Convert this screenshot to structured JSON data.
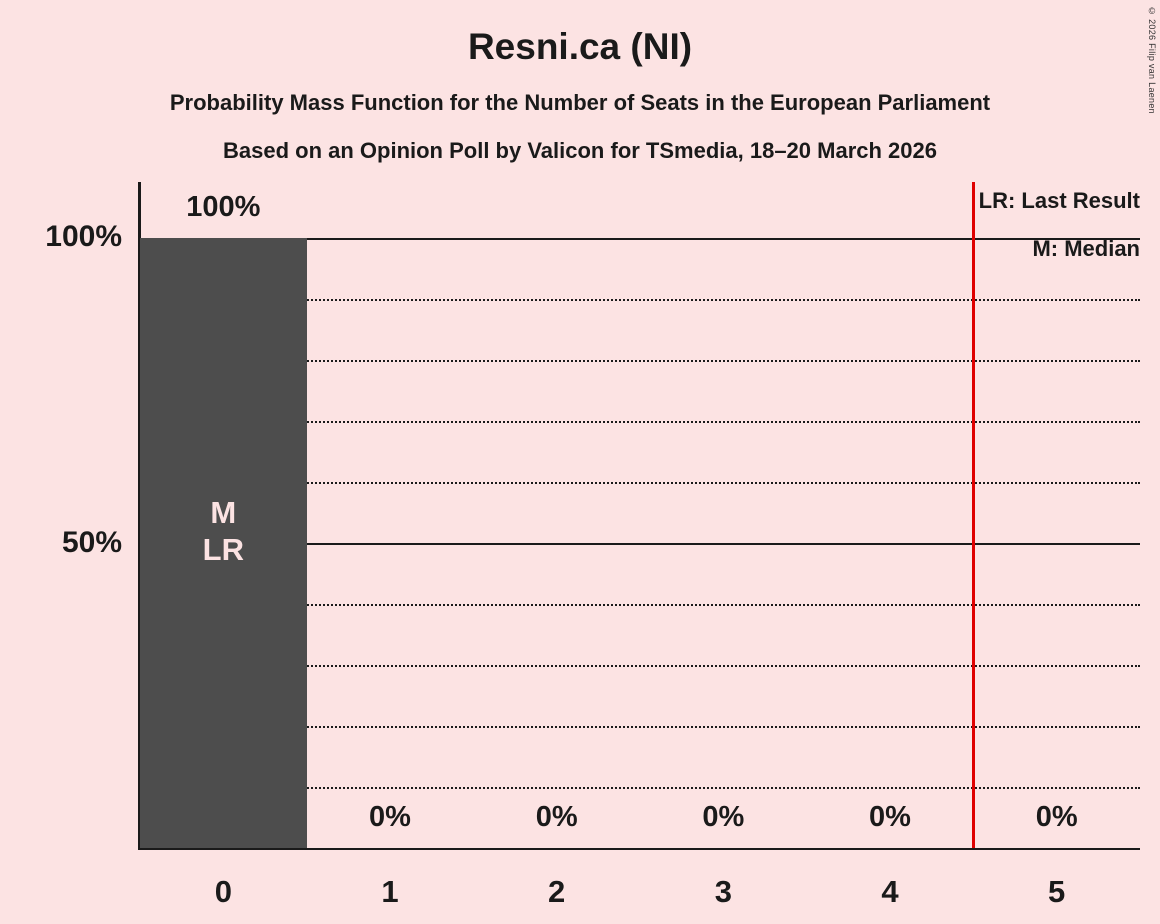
{
  "page": {
    "title": "Resni.ca (NI)",
    "subtitle1": "Probability Mass Function for the Number of Seats in the European Parliament",
    "subtitle2": "Based on an Opinion Poll by Valicon for TSmedia, 18–20 March 2026",
    "copyright": "© 2026 Filip van Laenen"
  },
  "legend": {
    "last_result": "LR: Last Result",
    "median": "M: Median"
  },
  "y_axis": {
    "label_100": "100%",
    "label_50": "50%"
  },
  "colors": {
    "background": "#FCE3E3",
    "bar": "#4D4D4D",
    "text": "#1A1A1A",
    "red_line": "#DF0000"
  },
  "chart_data": {
    "type": "bar",
    "title": "Resni.ca (NI)",
    "categories": [
      "0",
      "1",
      "2",
      "3",
      "4",
      "5"
    ],
    "values": [
      100,
      0,
      0,
      0,
      0,
      0
    ],
    "value_labels": [
      "100%",
      "0%",
      "0%",
      "0%",
      "0%",
      "0%"
    ],
    "ylim": [
      0,
      100
    ],
    "yticks_labeled": [
      "50%",
      "100%"
    ],
    "gridlines_percent": [
      10,
      20,
      30,
      40,
      50,
      60,
      70,
      80,
      90,
      100
    ],
    "median_seats": "0",
    "last_result_seats": "0",
    "marker": {
      "m": "M",
      "lr": "LR"
    },
    "vertical_line_x": 4.5,
    "legend_position": "top-right",
    "grid": "dotted horizontal"
  }
}
